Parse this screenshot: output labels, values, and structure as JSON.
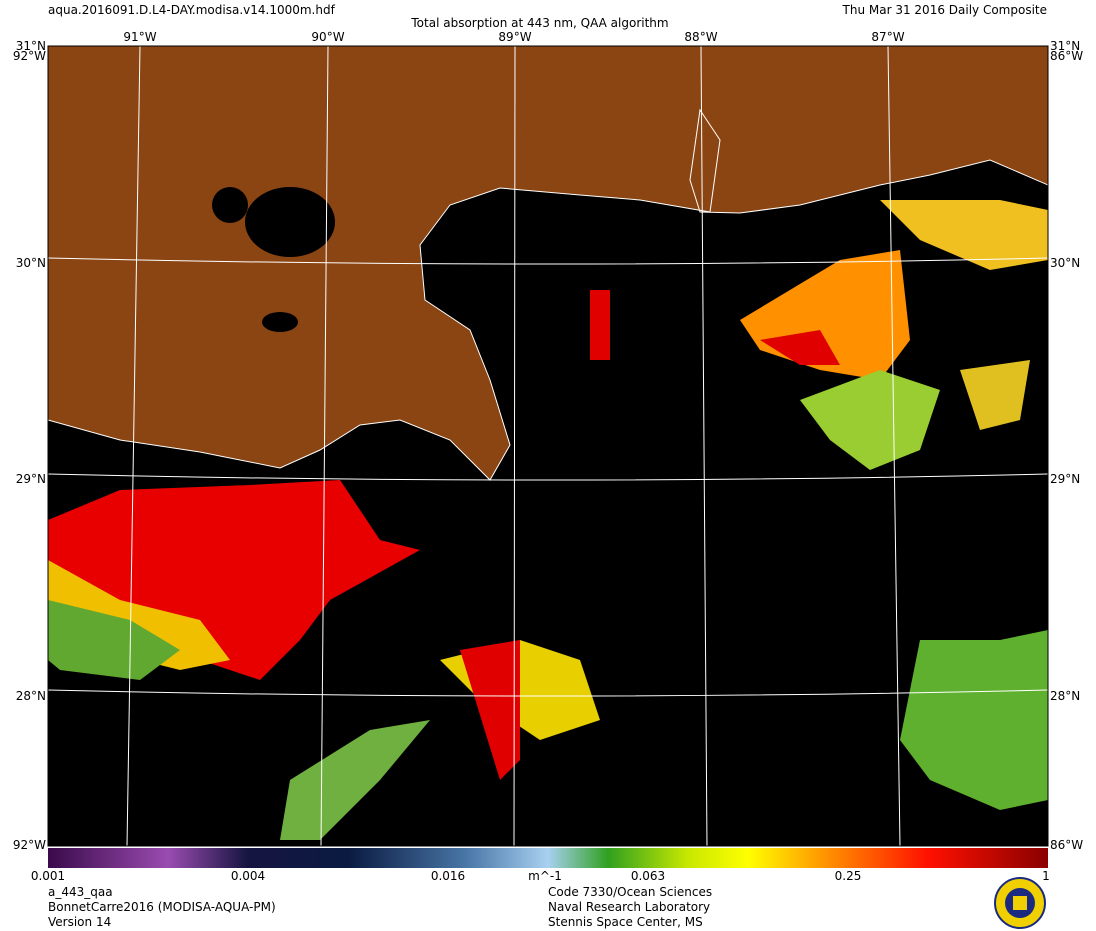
{
  "header": {
    "file": "aqua.2016091.D.L4-DAY.modisa.v14.1000m.hdf",
    "title": "Total absorption at 443 nm, QAA algorithm",
    "date": "Thu Mar 31 2016 Daily Composite"
  },
  "map": {
    "lon_labels": [
      "91°W",
      "90°W",
      "89°W",
      "88°W",
      "87°W"
    ],
    "lat_labels": [
      "31°N",
      "30°N",
      "29°N",
      "28°N"
    ],
    "corner_lon_labels": [
      "92°W",
      "86°W"
    ]
  },
  "colorbar": {
    "labels": [
      "0.001",
      "0.004",
      "0.016",
      "m^-1",
      "0.063",
      "0.25",
      "1"
    ]
  },
  "footer": {
    "left": [
      "a_443_qaa",
      "BonnetCarre2016 (MODISA-AQUA-PM)",
      "Version 14"
    ],
    "right": [
      "Code 7330/Ocean Sciences",
      "Naval Research Laboratory",
      "Stennis Space Center, MS"
    ]
  }
}
